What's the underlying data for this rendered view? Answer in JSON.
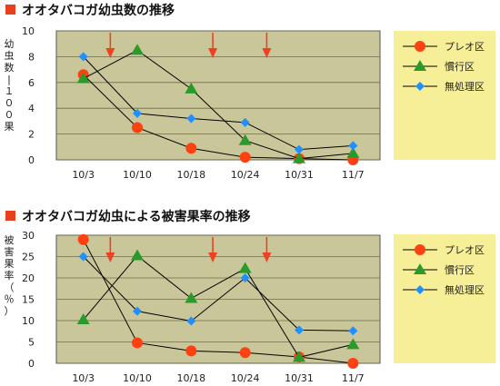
{
  "colors": {
    "plot_bg": "#c9c79a",
    "legend_bg": "#f7ef98",
    "title_marker": "#e8401c",
    "arrow": "#f04020",
    "preo": "#ff4010",
    "preo_line": "#000000",
    "kanko": "#2a9a2a",
    "kanko_line": "#000000",
    "muso": "#1e90ff",
    "muso_line": "#000000"
  },
  "chart_data": [
    {
      "type": "line",
      "title": "オオタバコガ幼虫数の推移",
      "ylabel": "幼虫数／１００果",
      "categories": [
        "10/3",
        "10/10",
        "10/18",
        "10/24",
        "10/31",
        "11/7"
      ],
      "ylim": [
        0,
        10
      ],
      "yticks": [
        0,
        2,
        4,
        6,
        8,
        10
      ],
      "grid": true,
      "legend": "right",
      "arrows_at": [
        0.5,
        2.4,
        3.4
      ],
      "series": [
        {
          "name": "プレオ区",
          "marker": "circle",
          "values": [
            6.6,
            2.5,
            0.9,
            0.2,
            0.1,
            0.0
          ]
        },
        {
          "name": "慣行区",
          "marker": "triangle",
          "values": [
            6.3,
            8.5,
            5.5,
            1.5,
            0.1,
            0.5
          ]
        },
        {
          "name": "無処理区",
          "marker": "diamond",
          "values": [
            8.0,
            3.6,
            3.2,
            2.9,
            0.8,
            1.1
          ]
        }
      ]
    },
    {
      "type": "line",
      "title": "オオタバコガ幼虫による被害果率の推移",
      "ylabel": "被害果率（％）",
      "categories": [
        "10/3",
        "10/10",
        "10/18",
        "10/24",
        "10/31",
        "11/7"
      ],
      "ylim": [
        0,
        30
      ],
      "yticks": [
        0,
        5,
        10,
        15,
        20,
        25,
        30
      ],
      "grid": true,
      "legend": "right",
      "arrows_at": [
        0.5,
        2.4,
        3.4
      ],
      "series": [
        {
          "name": "プレオ区",
          "marker": "circle",
          "values": [
            29,
            4.8,
            2.9,
            2.5,
            1.5,
            0.0
          ]
        },
        {
          "name": "慣行区",
          "marker": "triangle",
          "values": [
            10.2,
            25.2,
            15.2,
            22.2,
            1.4,
            4.4
          ]
        },
        {
          "name": "無処理区",
          "marker": "diamond",
          "values": [
            25,
            12.2,
            9.9,
            20,
            7.8,
            7.6
          ]
        }
      ]
    }
  ]
}
